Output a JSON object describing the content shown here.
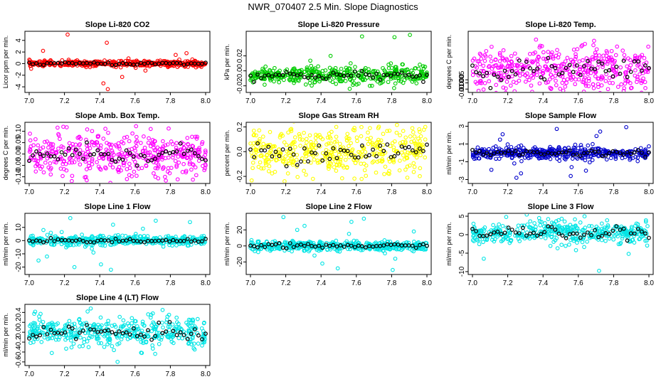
{
  "title": "NWR_070407  2.5 Min. Slope Diagnostics",
  "chart_data": [
    {
      "type": "scatter",
      "title": "Slope Li-820 CO2",
      "ylabel": "Licor ppm per min.",
      "xlim": [
        7.0,
        8.0
      ],
      "ylim": [
        -4.6,
        5.2
      ],
      "x_ticks": [
        "7.0",
        "7.2",
        "7.4",
        "7.6",
        "7.8",
        "8.0"
      ],
      "y_ticks": [
        -4,
        -2,
        0,
        2,
        4
      ],
      "y_tick_labels": [
        "-4",
        "-2",
        "0",
        "2",
        "4"
      ],
      "color": "#ff0000",
      "spread": 0.25,
      "center": 0.0,
      "outliers_y": [
        5.0,
        2.2,
        1.8,
        1.5,
        -1.2,
        -2.3,
        -3.4,
        -4.4,
        3.6,
        0.9
      ]
    },
    {
      "type": "scatter",
      "title": "Slope Li-820 Pressure",
      "ylabel": "kPa per min.",
      "xlim": [
        7.0,
        8.0
      ],
      "ylim": [
        -0.026,
        0.05
      ],
      "x_ticks": [
        "7.0",
        "7.2",
        "7.4",
        "7.6",
        "7.8",
        "8.0"
      ],
      "y_ticks": [
        -0.02,
        0.0,
        0.02
      ],
      "y_tick_labels": [
        "-0.02",
        "0.00",
        "0.02"
      ],
      "color": "#00cc00",
      "spread": 0.006,
      "center": -0.006,
      "outliers_y": [
        0.048,
        0.046,
        0.045,
        -0.024,
        -0.02,
        0.02
      ]
    },
    {
      "type": "scatter",
      "title": "Slope Li-820 Temp.",
      "ylabel": "degrees C per min.",
      "xlim": [
        7.0,
        8.0
      ],
      "ylim": [
        -0.012,
        0.08
      ],
      "x_ticks": [
        "7.0",
        "7.2",
        "7.4",
        "7.6",
        "7.8",
        "8.0"
      ],
      "y_ticks": [
        -0.01,
        0.0,
        0.005
      ],
      "y_tick_labels": [
        "-0.010",
        "0.000",
        "0.005"
      ],
      "color": "#ff00ff",
      "spread": 0.018,
      "center": 0.02,
      "outliers_y": [
        0.07,
        0.068,
        -0.01,
        -0.008
      ]
    },
    {
      "type": "scatter",
      "title": "Slope Amb. Box Temp.",
      "ylabel": "degrees C per min.",
      "xlim": [
        7.0,
        8.0
      ],
      "ylim": [
        -0.12,
        0.13
      ],
      "x_ticks": [
        "7.0",
        "7.2",
        "7.4",
        "7.6",
        "7.8",
        "8.0"
      ],
      "y_ticks": [
        -0.1,
        -0.05,
        0.0,
        0.05,
        0.1
      ],
      "y_tick_labels": [
        "-0.10",
        "-0.05",
        "0.00",
        "0.05",
        "0.10"
      ],
      "color": "#ff00ff",
      "spread": 0.045,
      "center": 0.0,
      "outliers_y": [
        0.12,
        0.11,
        -0.1,
        -0.11
      ]
    },
    {
      "type": "scatter",
      "title": "Slope Gas Stream RH",
      "ylabel": "percent per min.",
      "xlim": [
        7.0,
        8.0
      ],
      "ylim": [
        -0.24,
        0.22
      ],
      "x_ticks": [
        "7.0",
        "7.2",
        "7.4",
        "7.6",
        "7.8",
        "8.0"
      ],
      "y_ticks": [
        -0.2,
        0.0,
        0.2
      ],
      "y_tick_labels": [
        "-0.2",
        "0.0",
        "0.2"
      ],
      "color": "#ffff00",
      "spread": 0.09,
      "center": 0.0,
      "outliers_y": [
        0.2,
        0.19,
        -0.22,
        -0.21
      ]
    },
    {
      "type": "scatter",
      "title": "Slope Sample Flow",
      "ylabel": "ml/min per min.",
      "xlim": [
        7.0,
        8.0
      ],
      "ylim": [
        -3.2,
        3.2
      ],
      "x_ticks": [
        "7.0",
        "7.2",
        "7.4",
        "7.6",
        "7.8",
        "8.0"
      ],
      "y_ticks": [
        -3,
        -1,
        1,
        3
      ],
      "y_tick_labels": [
        "-3",
        "-1",
        "1",
        "3"
      ],
      "color": "#0000cc",
      "spread": 0.35,
      "center": 0.0,
      "outliers_y": [
        2.9,
        2.7,
        2.4,
        -2.8,
        -2.6,
        -2.3,
        1.9,
        -1.9,
        1.5,
        -1.6,
        2.1,
        -2.0
      ]
    },
    {
      "type": "scatter",
      "title": "Slope Line 1 Flow",
      "ylabel": "ml/min per min.",
      "xlim": [
        7.0,
        8.0
      ],
      "ylim": [
        -24,
        19
      ],
      "x_ticks": [
        "7.0",
        "7.2",
        "7.4",
        "7.6",
        "7.8",
        "8.0"
      ],
      "y_ticks": [
        -20,
        -10,
        0,
        10
      ],
      "y_tick_labels": [
        "-20",
        "-10",
        "0",
        "10"
      ],
      "color": "#00e5e5",
      "spread": 1.8,
      "center": 0.0,
      "outliers_y": [
        17,
        15,
        12,
        9,
        -22,
        -20,
        -18,
        -12,
        8,
        -9,
        14,
        -15
      ]
    },
    {
      "type": "scatter",
      "title": "Slope Line 2 Flow",
      "ylabel": "ml/min per min.",
      "xlim": [
        7.0,
        8.0
      ],
      "ylim": [
        -33,
        38
      ],
      "x_ticks": [
        "7.0",
        "7.2",
        "7.4",
        "7.6",
        "7.8",
        "8.0"
      ],
      "y_ticks": [
        -20,
        0,
        20
      ],
      "y_tick_labels": [
        "-20",
        "0",
        "20"
      ],
      "color": "#00e5e5",
      "spread": 3,
      "center": 0.0,
      "outliers_y": [
        36,
        34,
        30,
        25,
        -30,
        -28,
        -22,
        18,
        -16,
        20,
        -12,
        15
      ]
    },
    {
      "type": "scatter",
      "title": "Slope Line 3 Flow",
      "ylabel": "ml/min per min.",
      "xlim": [
        7.0,
        8.0
      ],
      "ylim": [
        -10.2,
        5.2
      ],
      "x_ticks": [
        "7.0",
        "7.2",
        "7.4",
        "7.6",
        "7.8",
        "8.0"
      ],
      "y_ticks": [
        -10,
        -5,
        0,
        5
      ],
      "y_tick_labels": [
        "-10",
        "-5",
        "0",
        "5"
      ],
      "color": "#00e5e5",
      "spread": 1.5,
      "center": 0.5,
      "outliers_y": [
        -9.8,
        -5.2,
        -6.5,
        4.8,
        4.5,
        -4.2
      ]
    },
    {
      "type": "scatter",
      "title": "Slope Line 4 (LT) Flow",
      "ylabel": "ml/min per min.",
      "xlim": [
        7.0,
        8.0
      ],
      "ylim": [
        -0.63,
        0.52
      ],
      "x_ticks": [
        "7.0",
        "7.2",
        "7.4",
        "7.6",
        "7.8",
        "8.0"
      ],
      "y_ticks": [
        -0.6,
        -0.4,
        -0.2,
        0.0,
        0.2,
        0.4
      ],
      "y_tick_labels": [
        "-0.6",
        "-0.4",
        "-0.2",
        "0.0",
        "0.2",
        "0.4"
      ],
      "color": "#00e5e5",
      "spread": 0.15,
      "center": 0.0,
      "outliers_y": [
        -0.6,
        0.48,
        0.45,
        -0.42,
        0.38,
        -0.35
      ]
    }
  ]
}
